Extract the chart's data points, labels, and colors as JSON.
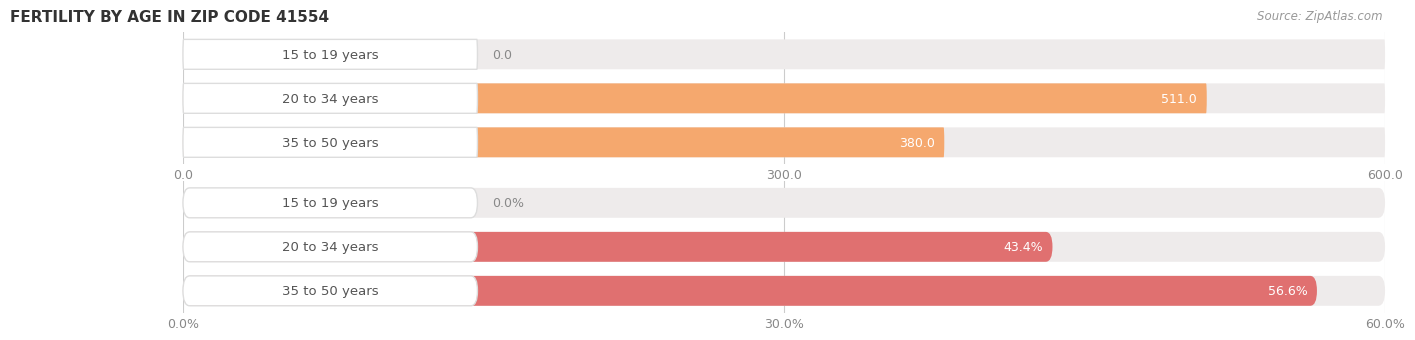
{
  "title": "FERTILITY BY AGE IN ZIP CODE 41554",
  "source": "Source: ZipAtlas.com",
  "top_chart": {
    "categories": [
      "15 to 19 years",
      "20 to 34 years",
      "35 to 50 years"
    ],
    "values": [
      0.0,
      511.0,
      380.0
    ],
    "value_labels": [
      "0.0",
      "511.0",
      "380.0"
    ],
    "xlim_max": 600,
    "xticks": [
      0.0,
      300.0,
      600.0
    ],
    "xtick_labels": [
      "0.0",
      "300.0",
      "600.0"
    ],
    "bar_color": "#F5A86E",
    "bar_bg_color": "#EEEBEB"
  },
  "bottom_chart": {
    "categories": [
      "15 to 19 years",
      "20 to 34 years",
      "35 to 50 years"
    ],
    "values": [
      0.0,
      43.4,
      56.6
    ],
    "value_labels": [
      "0.0%",
      "43.4%",
      "56.6%"
    ],
    "xlim_max": 60,
    "xticks": [
      0.0,
      30.0,
      60.0
    ],
    "xtick_labels": [
      "0.0%",
      "30.0%",
      "60.0%"
    ],
    "bar_color": "#E07070",
    "bar_bg_color": "#EEEBEB"
  },
  "background_color": "#FFFFFF",
  "bar_height": 0.68,
  "label_fontsize": 9,
  "tick_fontsize": 9,
  "category_fontsize": 9.5,
  "title_fontsize": 11,
  "source_fontsize": 8.5,
  "label_bg_color": "#FFFFFF",
  "label_text_color": "#555555",
  "value_color_inside": "#FFFFFF",
  "value_color_outside": "#888888"
}
